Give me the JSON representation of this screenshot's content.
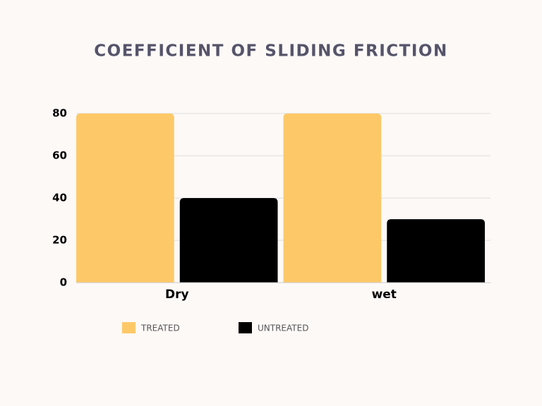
{
  "chart_data": {
    "type": "bar",
    "title": "COEFFICIENT OF SLIDING FRICTION",
    "categories": [
      "Dry",
      "wet"
    ],
    "series": [
      {
        "name": "TREATED",
        "color": "#fdc968",
        "values": [
          80,
          80
        ]
      },
      {
        "name": "UNTREATED",
        "color": "#000000",
        "values": [
          40,
          30
        ]
      }
    ],
    "ylim": [
      0,
      80
    ],
    "yticks": [
      0,
      20,
      40,
      60,
      80
    ],
    "grid": true,
    "legend": "bottom"
  }
}
